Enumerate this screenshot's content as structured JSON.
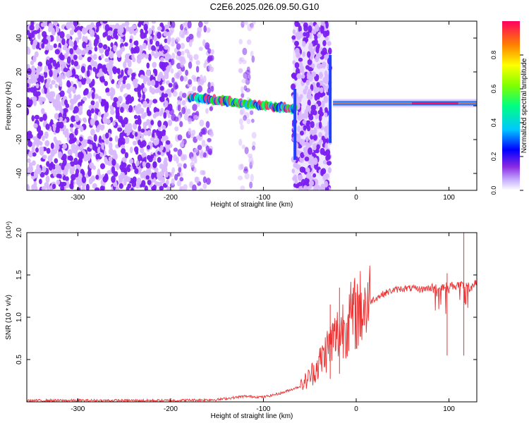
{
  "title": "C2E6.2025.026.09.50.G10",
  "colors": {
    "spectro_dots": "#7a1ef0",
    "spectro_dots_light": "#d8b8ff",
    "snr_line": "#ee3030",
    "axis": "#000000"
  },
  "chart_data": [
    {
      "type": "heatmap",
      "title": "C2E6.2025.026.09.50.G10",
      "xlabel": "Height of straight line (km)",
      "ylabel": "Frequency (Hz)",
      "xlim": [
        -355,
        130
      ],
      "ylim": [
        -50,
        50
      ],
      "xticks": [
        "-300",
        "-200",
        "-100",
        "0",
        "100"
      ],
      "xtick_values": [
        -300,
        -200,
        -100,
        0,
        100
      ],
      "yticks": [
        "-40",
        "-20",
        "0",
        "20",
        "40"
      ],
      "ytick_values": [
        -40,
        -20,
        0,
        20,
        40
      ],
      "colorbar": {
        "label": "Normalized spectral amplitude",
        "range": [
          0.0,
          1.0
        ],
        "ticks": [
          "0.0",
          "0.2",
          "0.4",
          "0.6",
          "0.8"
        ],
        "tick_values": [
          0.0,
          0.2,
          0.4,
          0.6,
          0.8
        ],
        "colormap": "rainbow"
      },
      "features": {
        "noise_region_km": [
          -355,
          -155
        ],
        "noise_bursts_km": [
          [
            -125,
            -110
          ],
          [
            -68,
            -28
          ]
        ],
        "signal_band_km": [
          -180,
          -65
        ],
        "signal_band_freq_hz": [
          5,
          -2
        ],
        "strong_band_km": [
          -25,
          130
        ],
        "strong_band_freq_hz": 1.5
      }
    },
    {
      "type": "line",
      "xlabel": "Height of straight line (km)",
      "ylabel": "SNR (10 * v/v)",
      "yscale_label": "(x10⁴)",
      "xlim": [
        -355,
        130
      ],
      "ylim": [
        0.0,
        2.0
      ],
      "xticks": [
        "-300",
        "-200",
        "-100",
        "0",
        "100"
      ],
      "xtick_values": [
        -300,
        -200,
        -100,
        0,
        100
      ],
      "yticks": [
        "0.5",
        "1.0",
        "1.5",
        "2.0"
      ],
      "ytick_values": [
        0.5,
        1.0,
        1.5,
        2.0
      ],
      "series": [
        {
          "x": [
            -355,
            -300,
            -250,
            -200,
            -150,
            -120,
            -100,
            -80,
            -60,
            -50,
            -40,
            -30,
            -20,
            -10,
            0,
            10,
            20,
            30,
            40,
            50,
            60,
            70,
            80,
            90,
            100,
            110,
            120,
            130
          ],
          "y": [
            0.01,
            0.01,
            0.01,
            0.01,
            0.02,
            0.06,
            0.05,
            0.1,
            0.18,
            0.3,
            0.45,
            0.65,
            0.8,
            0.95,
            1.05,
            1.15,
            1.22,
            1.28,
            1.32,
            1.34,
            1.34,
            1.33,
            1.35,
            1.36,
            1.37,
            1.38,
            1.36,
            1.4
          ],
          "spikes": [
            {
              "x": -28,
              "y": 1.15
            },
            {
              "x": -18,
              "y": 1.35
            },
            {
              "x": 98,
              "y": 1.52
            },
            {
              "x": 116,
              "y": 2.0
            }
          ]
        }
      ]
    }
  ]
}
